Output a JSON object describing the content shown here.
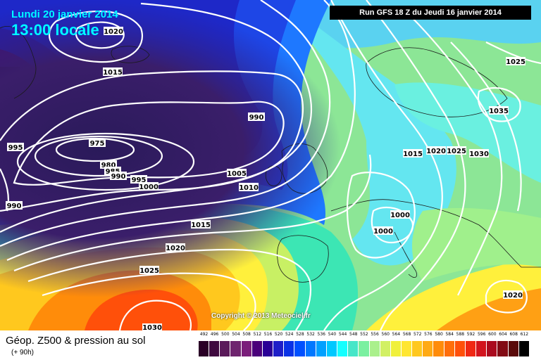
{
  "header": {
    "date_line": "Lundi 20 janvier 2014",
    "hour_line": "13:00 locale",
    "run": "Run GFS 18 Z du Jeudi 16 janvier 2014"
  },
  "copyright": "Copyright © 2013 Meteociel.fr",
  "footer": {
    "title": "Géop. Z500 & pression au sol",
    "subtitle": "(+ 90h)"
  },
  "isobar_labels": [
    "1020",
    "1015",
    "990",
    "975",
    "980",
    "985",
    "990",
    "995",
    "1000",
    "1005",
    "1010",
    "1015",
    "1020",
    "1025",
    "1030",
    "995",
    "990",
    "1025",
    "1035",
    "1015",
    "1020",
    "1025",
    "1030",
    "1000",
    "1000",
    "1020"
  ],
  "scale": {
    "values": [
      "492",
      "496",
      "500",
      "504",
      "508",
      "512",
      "516",
      "520",
      "524",
      "528",
      "532",
      "536",
      "540",
      "544",
      "548",
      "552",
      "556",
      "560",
      "564",
      "568",
      "572",
      "576",
      "580",
      "584",
      "588",
      "592",
      "596",
      "600",
      "604",
      "608",
      "612"
    ],
    "colors": [
      "#2a0026",
      "#3f0a3f",
      "#5a1a5a",
      "#6e246e",
      "#7a1e7a",
      "#4a007a",
      "#2a0096",
      "#1e1ec8",
      "#0a32e6",
      "#0050ff",
      "#0078ff",
      "#00a0ff",
      "#00c8ff",
      "#14ffff",
      "#46e6c8",
      "#7af0a0",
      "#aaf08c",
      "#d2f064",
      "#f0f03c",
      "#ffe632",
      "#ffc81e",
      "#ffaa14",
      "#ff8c0a",
      "#ff6e0a",
      "#ff500a",
      "#f02814",
      "#d2141e",
      "#aa0a1e",
      "#820a14",
      "#5a0a0a",
      "#000000"
    ]
  },
  "colors": {
    "isobar": "#ffffff",
    "accent_text": "#00ffff",
    "panel": "#000000"
  }
}
